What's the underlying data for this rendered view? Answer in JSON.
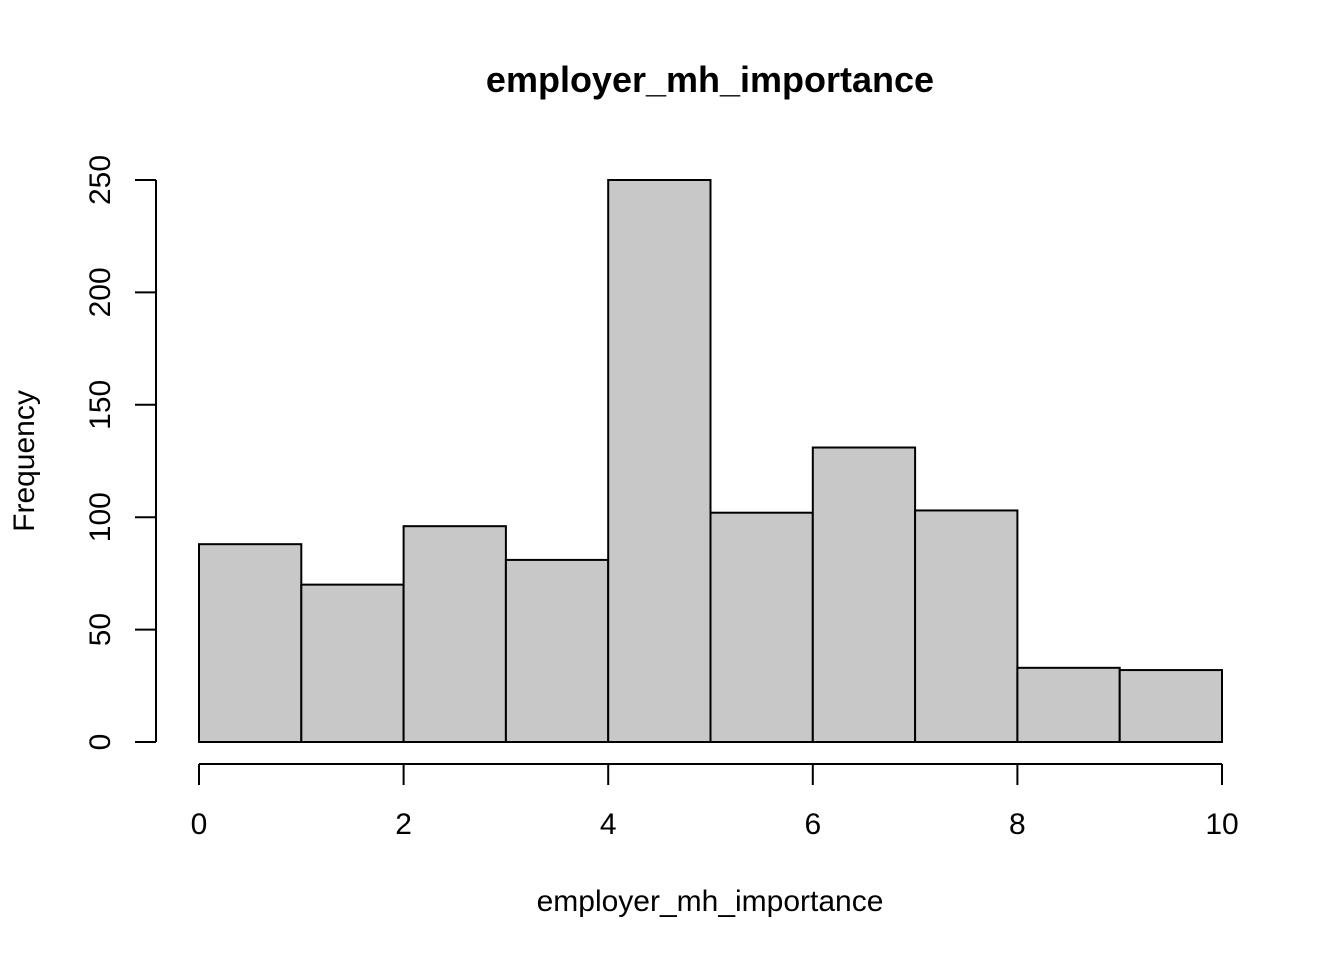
{
  "chart_data": {
    "type": "bar",
    "title": "employer_mh_importance",
    "xlabel": "employer_mh_importance",
    "ylabel": "Frequency",
    "bins": [
      [
        0,
        1
      ],
      [
        1,
        2
      ],
      [
        2,
        3
      ],
      [
        3,
        4
      ],
      [
        4,
        5
      ],
      [
        5,
        6
      ],
      [
        6,
        7
      ],
      [
        7,
        8
      ],
      [
        8,
        9
      ],
      [
        9,
        10
      ]
    ],
    "values": [
      88,
      70,
      96,
      81,
      250,
      102,
      131,
      103,
      33,
      32
    ],
    "xlim": [
      0,
      10
    ],
    "ylim": [
      0,
      250
    ],
    "xticks": [
      "0",
      "2",
      "4",
      "6",
      "8",
      "10"
    ],
    "yticks": [
      "0",
      "50",
      "100",
      "150",
      "200",
      "250"
    ],
    "bar_color": "#c8c8c8",
    "grid": false,
    "legend": "none"
  }
}
